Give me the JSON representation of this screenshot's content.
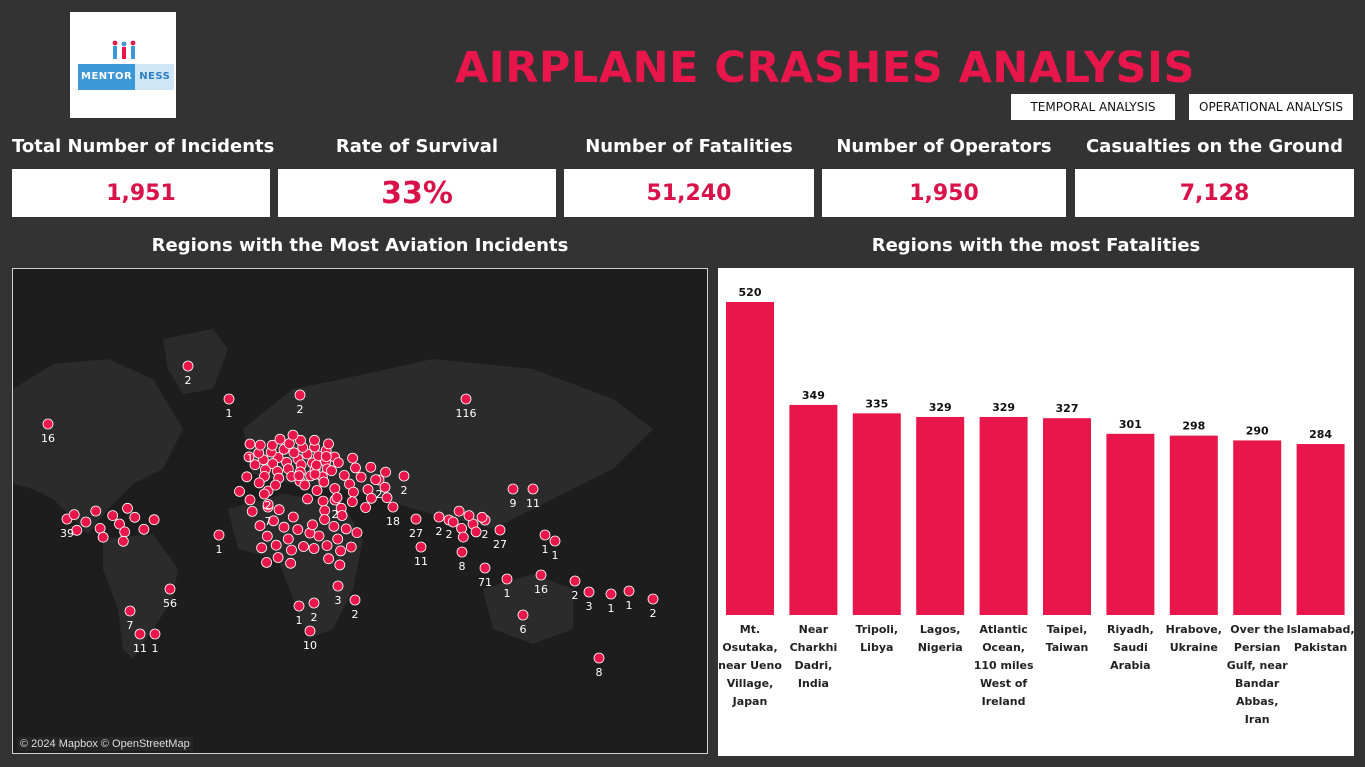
{
  "logo": {
    "text_part1": "MENTOR",
    "text_part2": "NESS"
  },
  "header": {
    "title": "AIRPLANE CRASHES ANALYSIS"
  },
  "nav": {
    "temporal": "TEMPORAL ANALYSIS",
    "operational": "OPERATIONAL ANALYSIS"
  },
  "kpis": [
    {
      "label": "Total Number of Incidents",
      "value": "1,951"
    },
    {
      "label": "Rate of Survival",
      "value": "33%"
    },
    {
      "label": "Number of Fatalities",
      "value": "51,240"
    },
    {
      "label": "Number of Operators",
      "value": "1,950"
    },
    {
      "label": "Casualties on the Ground",
      "value": "7,128"
    }
  ],
  "map": {
    "title": "Regions  with the Most Aviation Incidents",
    "attribution": "© 2024 Mapbox © OpenStreetMap",
    "labels": [
      "2",
      "1",
      "16",
      "116",
      "2",
      "1",
      "39",
      "56",
      "7",
      "11",
      "1",
      "2",
      "7",
      "2",
      "2",
      "18",
      "2",
      "27",
      "2",
      "2",
      "2",
      "27",
      "11",
      "9",
      "11",
      "8",
      "71",
      "1",
      "1",
      "1",
      "16",
      "1",
      "2",
      "3",
      "1",
      "1",
      "2",
      "6",
      "8",
      "1",
      "2",
      "10",
      "2",
      "3"
    ],
    "colors": {
      "marker": "#e8164a",
      "background": "#1d1d1d",
      "land": "#2a2a2a"
    }
  },
  "chart_data": {
    "type": "bar",
    "title": "Regions with the most Fatalities",
    "categories": [
      "Mt. Osutaka, near Ueno Village, Japan",
      "Near Charkhi Dadri, India",
      "Tripoli, Libya",
      "Lagos, Nigeria",
      "Atlantic Ocean, 110 miles West of Ireland",
      "Taipei, Taiwan",
      "Riyadh, Saudi Arabia",
      "Hrabove, Ukraine",
      "Over the Persian Gulf, near Bandar Abbas, Iran",
      "Islamabad, Pakistan"
    ],
    "category_lines": [
      [
        "Mt.",
        "Osutaka,",
        "near Ueno",
        "Village,",
        "Japan"
      ],
      [
        "Near",
        "Charkhi",
        "Dadri,",
        "India"
      ],
      [
        "Tripoli,",
        "Libya"
      ],
      [
        "Lagos,",
        "Nigeria"
      ],
      [
        "Atlantic",
        "Ocean,",
        "110 miles",
        "West of",
        "Ireland"
      ],
      [
        "Taipei,",
        "Taiwan"
      ],
      [
        "Riyadh,",
        "Saudi",
        "Arabia"
      ],
      [
        "Hrabove,",
        "Ukraine"
      ],
      [
        "Over the",
        "Persian",
        "Gulf, near",
        "Bandar",
        "Abbas,",
        "Iran"
      ],
      [
        "Islamabad,",
        "Pakistan"
      ]
    ],
    "values": [
      520,
      349,
      335,
      329,
      329,
      327,
      301,
      298,
      290,
      284
    ],
    "ylim": [
      0,
      520
    ],
    "grid": false,
    "bar_color": "#e8164a"
  }
}
